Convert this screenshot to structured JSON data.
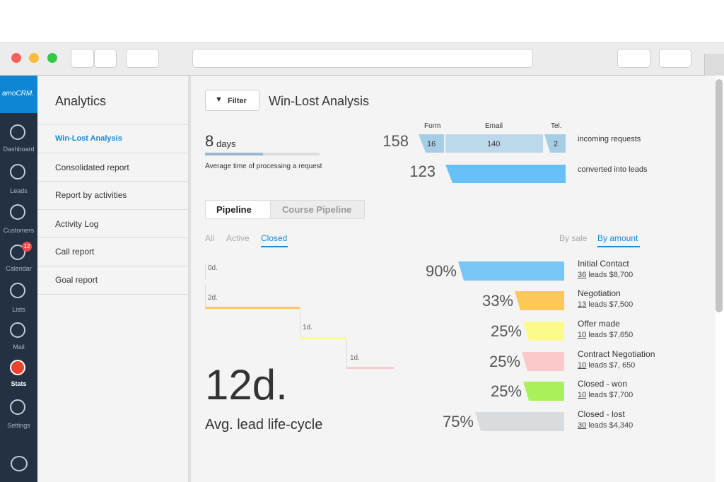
{
  "sidebar": {
    "logo": "amoCRM.",
    "items": [
      "Dashboard",
      "Leads",
      "Customers",
      "Calendar",
      "Lists",
      "Mail",
      "Stats",
      "Settings"
    ],
    "calendar_badge": 12
  },
  "subnav": {
    "title": "Analytics",
    "items": [
      "Win-Lost Analysis",
      "Consolidated report",
      "Report by activities",
      "Activity Log",
      "Call report",
      "Goal report"
    ]
  },
  "header": {
    "filter": "Filter",
    "title": "Win-Lost Analysis"
  },
  "processing": {
    "value": 8,
    "unit": "days",
    "caption": "Average time of processing a request"
  },
  "requests": {
    "incoming": 158,
    "incoming_label": "incoming requests",
    "sources": [
      {
        "name": "Form",
        "value": 16
      },
      {
        "name": "Email",
        "value": 140
      },
      {
        "name": "Tel.",
        "value": 2
      }
    ],
    "converted": 123,
    "converted_label": "converted into leads"
  },
  "tabs": [
    "Pipeline",
    "Course Pipeline"
  ],
  "filters": [
    "All",
    "Active",
    "Closed"
  ],
  "sort": [
    "By sale",
    "By amount"
  ],
  "durations": [
    "0d.",
    "2d.",
    "1d.",
    "1d."
  ],
  "lifecycle": {
    "value": "12d.",
    "label": "Avg. lead life-cycle"
  },
  "stages": [
    {
      "percent": "90%",
      "name": "Initial Contact",
      "leads": "36",
      "detail": "leads $8,700"
    },
    {
      "percent": "33%",
      "name": "Negotiation",
      "leads": "13",
      "detail": "leads $7,500"
    },
    {
      "percent": "25%",
      "name": "Offer made",
      "leads": "10",
      "detail": "leads $7,650"
    },
    {
      "percent": "25%",
      "name": "Contract Negotiation",
      "leads": "10",
      "detail": "leads $7, 650"
    },
    {
      "percent": "25%",
      "name": "Closed - won",
      "leads": "10",
      "detail": "leads $7,700"
    },
    {
      "percent": "75%",
      "name": "Closed - lost",
      "leads": "30",
      "detail": "leads $4,340"
    }
  ]
}
